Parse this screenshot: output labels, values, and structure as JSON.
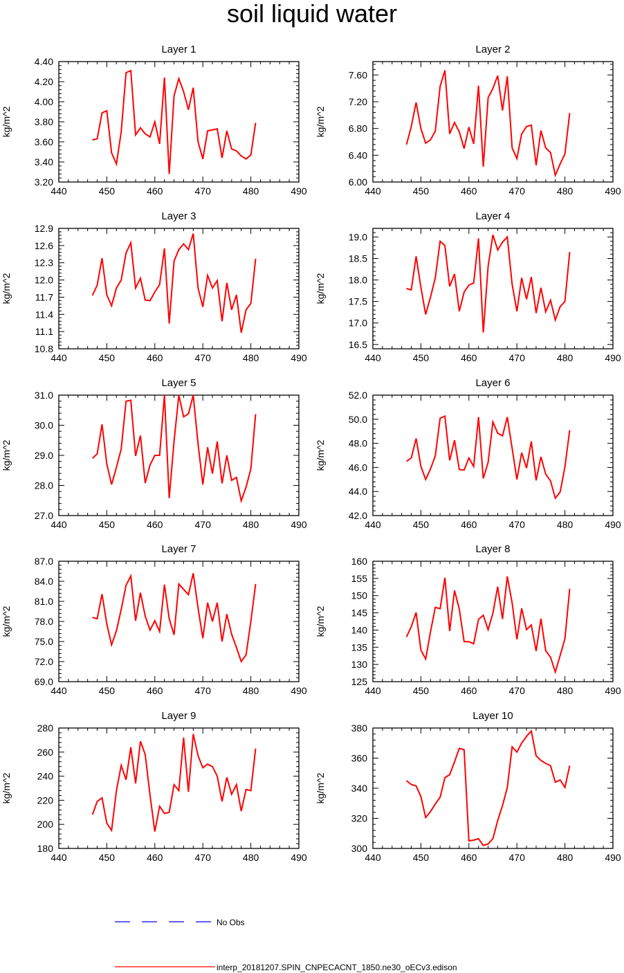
{
  "title": "soil liquid water",
  "legend": {
    "obs_label": "No Obs",
    "obs_color": "#0000ff",
    "model_label": "interp_20181207.SPIN_CNPECACNT_1850.ne30_oECv3.edison",
    "model_color": "#ff0000"
  },
  "chart_data": [
    {
      "type": "line",
      "title": "Layer 1",
      "xlabel": "",
      "ylabel": "kg/m^2",
      "xlim": [
        440,
        490
      ],
      "xticks": [
        440,
        450,
        460,
        470,
        480,
        490
      ],
      "ylim": [
        3.2,
        4.4
      ],
      "yticks": [
        "3.20",
        "3.40",
        "3.60",
        "3.80",
        "4.00",
        "4.20",
        "4.40"
      ],
      "series": [
        {
          "name": "interp_20181207.SPIN_CNPECACNT_1850.ne30_oECv3.edison",
          "x": [
            447,
            448,
            449,
            450,
            451,
            452,
            453,
            454,
            455,
            456,
            457,
            458,
            459,
            460,
            461,
            462,
            463,
            464,
            465,
            466,
            467,
            468,
            469,
            470,
            471,
            472,
            473,
            474,
            475,
            476,
            477,
            478,
            479,
            480,
            481
          ],
          "values": [
            3.62,
            3.63,
            3.89,
            3.91,
            3.49,
            3.38,
            3.7,
            4.29,
            4.31,
            3.67,
            3.74,
            3.68,
            3.65,
            3.8,
            3.58,
            4.24,
            3.28,
            4.06,
            4.23,
            4.1,
            3.92,
            4.14,
            3.6,
            3.43,
            3.71,
            3.72,
            3.73,
            3.44,
            3.71,
            3.53,
            3.51,
            3.46,
            3.43,
            3.47,
            3.79
          ]
        }
      ]
    },
    {
      "type": "line",
      "title": "Layer 2",
      "xlabel": "",
      "ylabel": "kg/m^2",
      "xlim": [
        440,
        490
      ],
      "xticks": [
        440,
        450,
        460,
        470,
        480,
        490
      ],
      "ylim": [
        6.0,
        7.8
      ],
      "yticks": [
        "6.00",
        "6.40",
        "6.80",
        "7.20",
        "7.60"
      ],
      "series": [
        {
          "name": "interp_20181207.SPIN_CNPECACNT_1850.ne30_oECv3.edison",
          "x": [
            447,
            448,
            449,
            450,
            451,
            452,
            453,
            454,
            455,
            456,
            457,
            458,
            459,
            460,
            461,
            462,
            463,
            464,
            465,
            466,
            467,
            468,
            469,
            470,
            471,
            472,
            473,
            474,
            475,
            476,
            477,
            478,
            479,
            480,
            481
          ],
          "values": [
            6.56,
            6.83,
            7.19,
            6.8,
            6.58,
            6.63,
            6.76,
            7.43,
            7.67,
            6.72,
            6.89,
            6.75,
            6.5,
            6.82,
            6.57,
            7.44,
            6.23,
            7.26,
            7.4,
            7.59,
            7.07,
            7.58,
            6.51,
            6.35,
            6.72,
            6.83,
            6.85,
            6.25,
            6.77,
            6.51,
            6.44,
            6.1,
            6.27,
            6.42,
            7.03
          ]
        }
      ]
    },
    {
      "type": "line",
      "title": "Layer 3",
      "xlabel": "",
      "ylabel": "kg/m^2",
      "xlim": [
        440,
        490
      ],
      "xticks": [
        440,
        450,
        460,
        470,
        480,
        490
      ],
      "ylim": [
        10.8,
        12.9
      ],
      "yticks": [
        "10.8",
        "11.1",
        "11.4",
        "11.7",
        "12.0",
        "12.3",
        "12.6",
        "12.9"
      ],
      "series": [
        {
          "name": "interp_20181207.SPIN_CNPECACNT_1850.ne30_oECv3.edison",
          "x": [
            447,
            448,
            449,
            450,
            451,
            452,
            453,
            454,
            455,
            456,
            457,
            458,
            459,
            460,
            461,
            462,
            463,
            464,
            465,
            466,
            467,
            468,
            469,
            470,
            471,
            472,
            473,
            474,
            475,
            476,
            477,
            478,
            479,
            480,
            481
          ],
          "values": [
            11.73,
            11.91,
            12.38,
            11.74,
            11.55,
            11.86,
            12.0,
            12.47,
            12.65,
            11.86,
            12.03,
            11.65,
            11.64,
            11.79,
            11.92,
            12.55,
            11.24,
            12.33,
            12.53,
            12.63,
            12.53,
            12.81,
            11.86,
            11.53,
            12.08,
            11.86,
            11.99,
            11.28,
            11.95,
            11.48,
            11.74,
            11.08,
            11.48,
            11.59,
            12.37
          ]
        }
      ]
    },
    {
      "type": "line",
      "title": "Layer 4",
      "xlabel": "",
      "ylabel": "kg/m^2",
      "xlim": [
        440,
        490
      ],
      "xticks": [
        440,
        450,
        460,
        470,
        480,
        490
      ],
      "ylim": [
        16.4,
        19.2
      ],
      "yticks": [
        "16.5",
        "17.0",
        "17.5",
        "18.0",
        "18.5",
        "19.0"
      ],
      "series": [
        {
          "name": "interp_20181207.SPIN_CNPECACNT_1850.ne30_oECv3.edison",
          "x": [
            447,
            448,
            449,
            450,
            451,
            452,
            453,
            454,
            455,
            456,
            457,
            458,
            459,
            460,
            461,
            462,
            463,
            464,
            465,
            466,
            467,
            468,
            469,
            470,
            471,
            472,
            473,
            474,
            475,
            476,
            477,
            478,
            479,
            480,
            481
          ],
          "values": [
            17.8,
            17.77,
            18.55,
            17.83,
            17.2,
            17.6,
            18.05,
            18.9,
            18.8,
            17.85,
            18.14,
            17.27,
            17.72,
            17.88,
            17.93,
            18.97,
            16.78,
            18.32,
            19.05,
            18.7,
            18.88,
            19.0,
            17.9,
            17.27,
            18.05,
            17.55,
            18.07,
            17.23,
            17.82,
            17.26,
            17.53,
            17.07,
            17.38,
            17.5,
            18.65
          ]
        }
      ]
    },
    {
      "type": "line",
      "title": "Layer 5",
      "xlabel": "",
      "ylabel": "kg/m^2",
      "xlim": [
        440,
        490
      ],
      "xticks": [
        440,
        450,
        460,
        470,
        480,
        490
      ],
      "ylim": [
        27.0,
        31.0
      ],
      "yticks": [
        "27.0",
        "28.0",
        "29.0",
        "30.0",
        "31.0"
      ],
      "series": [
        {
          "name": "interp_20181207.SPIN_CNPECACNT_1850.ne30_oECv3.edison",
          "x": [
            447,
            448,
            449,
            450,
            451,
            452,
            453,
            454,
            455,
            456,
            457,
            458,
            459,
            460,
            461,
            462,
            463,
            464,
            465,
            466,
            467,
            468,
            469,
            470,
            471,
            472,
            473,
            474,
            475,
            476,
            477,
            478,
            479,
            480,
            481
          ],
          "values": [
            28.9,
            29.05,
            30.03,
            28.71,
            28.03,
            28.6,
            29.21,
            30.8,
            30.83,
            28.98,
            29.66,
            28.08,
            28.68,
            29.0,
            29.0,
            31.0,
            27.58,
            29.47,
            31.0,
            30.28,
            30.38,
            31.0,
            29.38,
            28.03,
            29.27,
            28.39,
            29.46,
            28.07,
            29.0,
            28.17,
            28.27,
            27.49,
            27.95,
            28.55,
            30.37
          ]
        }
      ]
    },
    {
      "type": "line",
      "title": "Layer 6",
      "xlabel": "",
      "ylabel": "kg/m^2",
      "xlim": [
        440,
        490
      ],
      "xticks": [
        440,
        450,
        460,
        470,
        480,
        490
      ],
      "ylim": [
        42.0,
        52.0
      ],
      "yticks": [
        "42.0",
        "44.0",
        "46.0",
        "48.0",
        "50.0",
        "52.0"
      ],
      "series": [
        {
          "name": "interp_20181207.SPIN_CNPECACNT_1850.ne30_oECv3.edison",
          "x": [
            447,
            448,
            449,
            450,
            451,
            452,
            453,
            454,
            455,
            456,
            457,
            458,
            459,
            460,
            461,
            462,
            463,
            464,
            465,
            466,
            467,
            468,
            469,
            470,
            471,
            472,
            473,
            474,
            475,
            476,
            477,
            478,
            479,
            480,
            481
          ],
          "values": [
            46.5,
            46.78,
            48.4,
            46.1,
            45.0,
            45.88,
            46.95,
            50.08,
            50.26,
            46.58,
            48.26,
            45.82,
            45.78,
            46.78,
            46.08,
            50.18,
            45.08,
            46.42,
            49.78,
            48.84,
            48.62,
            50.18,
            47.58,
            45.0,
            47.22,
            45.94,
            48.16,
            44.92,
            46.88,
            45.44,
            44.88,
            43.44,
            43.96,
            46.04,
            49.1
          ]
        }
      ]
    },
    {
      "type": "line",
      "title": "Layer 7",
      "xlabel": "",
      "ylabel": "kg/m^2",
      "xlim": [
        440,
        490
      ],
      "xticks": [
        440,
        450,
        460,
        470,
        480,
        490
      ],
      "ylim": [
        69.0,
        87.0
      ],
      "yticks": [
        "69.0",
        "72.0",
        "75.0",
        "78.0",
        "81.0",
        "84.0",
        "87.0"
      ],
      "series": [
        {
          "name": "interp_20181207.SPIN_CNPECACNT_1850.ne30_oECv3.edison",
          "x": [
            447,
            448,
            449,
            450,
            451,
            452,
            453,
            454,
            455,
            456,
            457,
            458,
            459,
            460,
            461,
            462,
            463,
            464,
            465,
            466,
            467,
            468,
            469,
            470,
            471,
            472,
            473,
            474,
            475,
            476,
            477,
            478,
            479,
            480,
            481
          ],
          "values": [
            78.6,
            78.4,
            82.1,
            77.6,
            74.5,
            76.6,
            79.8,
            83.4,
            84.8,
            78.1,
            82.3,
            78.8,
            76.7,
            78.1,
            76.5,
            83.5,
            78.4,
            76.0,
            83.6,
            82.8,
            82.0,
            85.2,
            80.0,
            75.5,
            80.8,
            78.0,
            80.8,
            75.0,
            79.1,
            76.1,
            74.1,
            72.0,
            73.0,
            78.0,
            83.6
          ]
        }
      ]
    },
    {
      "type": "line",
      "title": "Layer 8",
      "xlabel": "",
      "ylabel": "kg/m^2",
      "xlim": [
        440,
        490
      ],
      "xticks": [
        440,
        450,
        460,
        470,
        480,
        490
      ],
      "ylim": [
        125,
        160
      ],
      "yticks": [
        "125",
        "130",
        "135",
        "140",
        "145",
        "150",
        "155",
        "160"
      ],
      "series": [
        {
          "name": "interp_20181207.SPIN_CNPECACNT_1850.ne30_oECv3.edison",
          "x": [
            447,
            448,
            449,
            450,
            451,
            452,
            453,
            454,
            455,
            456,
            457,
            458,
            459,
            460,
            461,
            462,
            463,
            464,
            465,
            466,
            467,
            468,
            469,
            470,
            471,
            472,
            473,
            474,
            475,
            476,
            477,
            478,
            479,
            480,
            481
          ],
          "values": [
            138.0,
            141.0,
            145.1,
            134.2,
            131.6,
            139.5,
            146.6,
            146.2,
            155.2,
            139.7,
            151.5,
            146.1,
            136.6,
            136.6,
            136.0,
            143.1,
            144.3,
            140.1,
            144.9,
            152.6,
            143.2,
            155.6,
            147.9,
            137.3,
            146.3,
            140.1,
            141.5,
            133.9,
            143.3,
            134.0,
            132.1,
            127.8,
            132.6,
            137.5,
            152.0
          ]
        }
      ]
    },
    {
      "type": "line",
      "title": "Layer 9",
      "xlabel": "",
      "ylabel": "kg/m^2",
      "xlim": [
        440,
        490
      ],
      "xticks": [
        440,
        450,
        460,
        470,
        480,
        490
      ],
      "ylim": [
        180,
        280
      ],
      "yticks": [
        "180",
        "200",
        "220",
        "240",
        "260",
        "280"
      ],
      "series": [
        {
          "name": "interp_20181207.SPIN_CNPECACNT_1850.ne30_oECv3.edison",
          "x": [
            447,
            448,
            449,
            450,
            451,
            452,
            453,
            454,
            455,
            456,
            457,
            458,
            459,
            460,
            461,
            462,
            463,
            464,
            465,
            466,
            467,
            468,
            469,
            470,
            471,
            472,
            473,
            474,
            475,
            476,
            477,
            478,
            479,
            480,
            481
          ],
          "values": [
            208.0,
            219.0,
            222.0,
            201.0,
            195.0,
            228.0,
            249.0,
            237.0,
            264.0,
            234.0,
            269.0,
            258.0,
            224.0,
            194.0,
            215.0,
            209.0,
            210.0,
            233.0,
            228.0,
            272.0,
            227.0,
            275.0,
            257.0,
            247.0,
            250.0,
            248.0,
            240.0,
            219.0,
            239.0,
            225.0,
            233.0,
            211.0,
            229.0,
            228.0,
            263.0
          ]
        }
      ]
    },
    {
      "type": "line",
      "title": "Layer 10",
      "xlabel": "",
      "ylabel": "kg/m^2",
      "xlim": [
        440,
        490
      ],
      "xticks": [
        440,
        450,
        460,
        470,
        480,
        490
      ],
      "ylim": [
        300,
        380
      ],
      "yticks": [
        "300",
        "320",
        "340",
        "360",
        "380"
      ],
      "series": [
        {
          "name": "interp_20181207.SPIN_CNPECACNT_1850.ne30_oECv3.edison",
          "x": [
            447,
            448,
            449,
            450,
            451,
            452,
            453,
            454,
            455,
            456,
            457,
            458,
            459,
            460,
            461,
            462,
            463,
            464,
            465,
            466,
            467,
            468,
            469,
            470,
            471,
            472,
            473,
            474,
            475,
            476,
            477,
            478,
            479,
            480,
            481
          ],
          "values": [
            345.0,
            342.5,
            341.5,
            334.5,
            320.5,
            324.5,
            329.5,
            334.0,
            347.0,
            349.0,
            357.5,
            366.5,
            365.5,
            305.0,
            305.5,
            306.5,
            302.0,
            303.0,
            306.5,
            318.5,
            328.5,
            340.5,
            367.5,
            364.0,
            370.0,
            374.5,
            378.0,
            361.5,
            358.5,
            356.5,
            355.0,
            344.0,
            345.5,
            340.5,
            355.0
          ]
        }
      ]
    }
  ]
}
